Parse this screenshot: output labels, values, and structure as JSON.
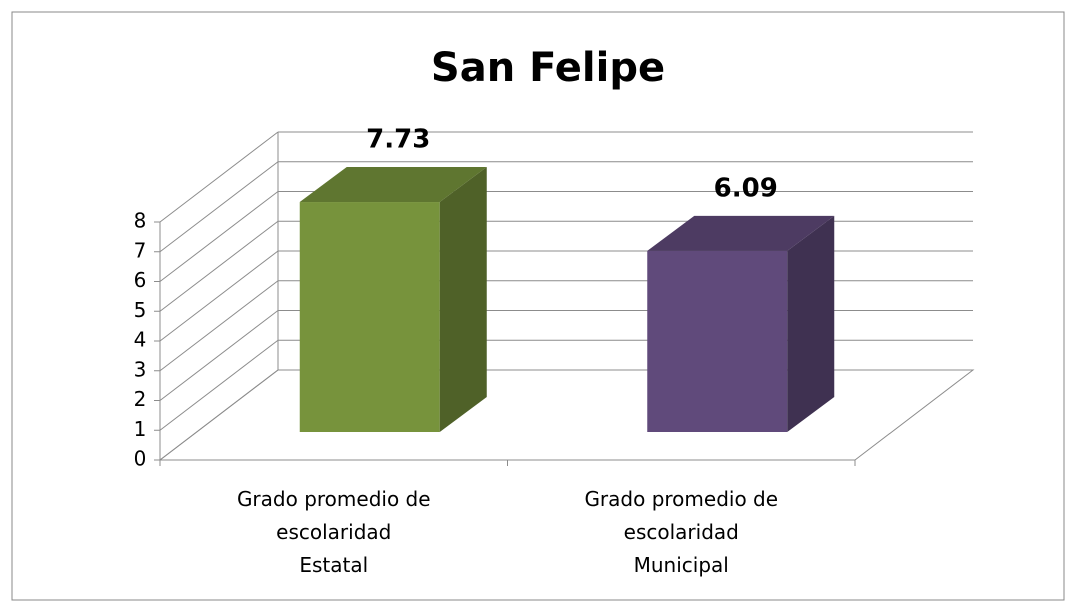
{
  "chart_data": {
    "type": "bar3d",
    "title": "San Felipe",
    "categories": [
      "Grado promedio de escolaridad Estatal",
      "Grado promedio de escolaridad Municipal"
    ],
    "values": [
      7.73,
      6.09
    ],
    "colors": [
      "#77933c",
      "#604a7b"
    ],
    "ylim": [
      0,
      8
    ],
    "yticks": [
      0,
      1,
      2,
      3,
      4,
      5,
      6,
      7,
      8
    ],
    "grid": true
  }
}
